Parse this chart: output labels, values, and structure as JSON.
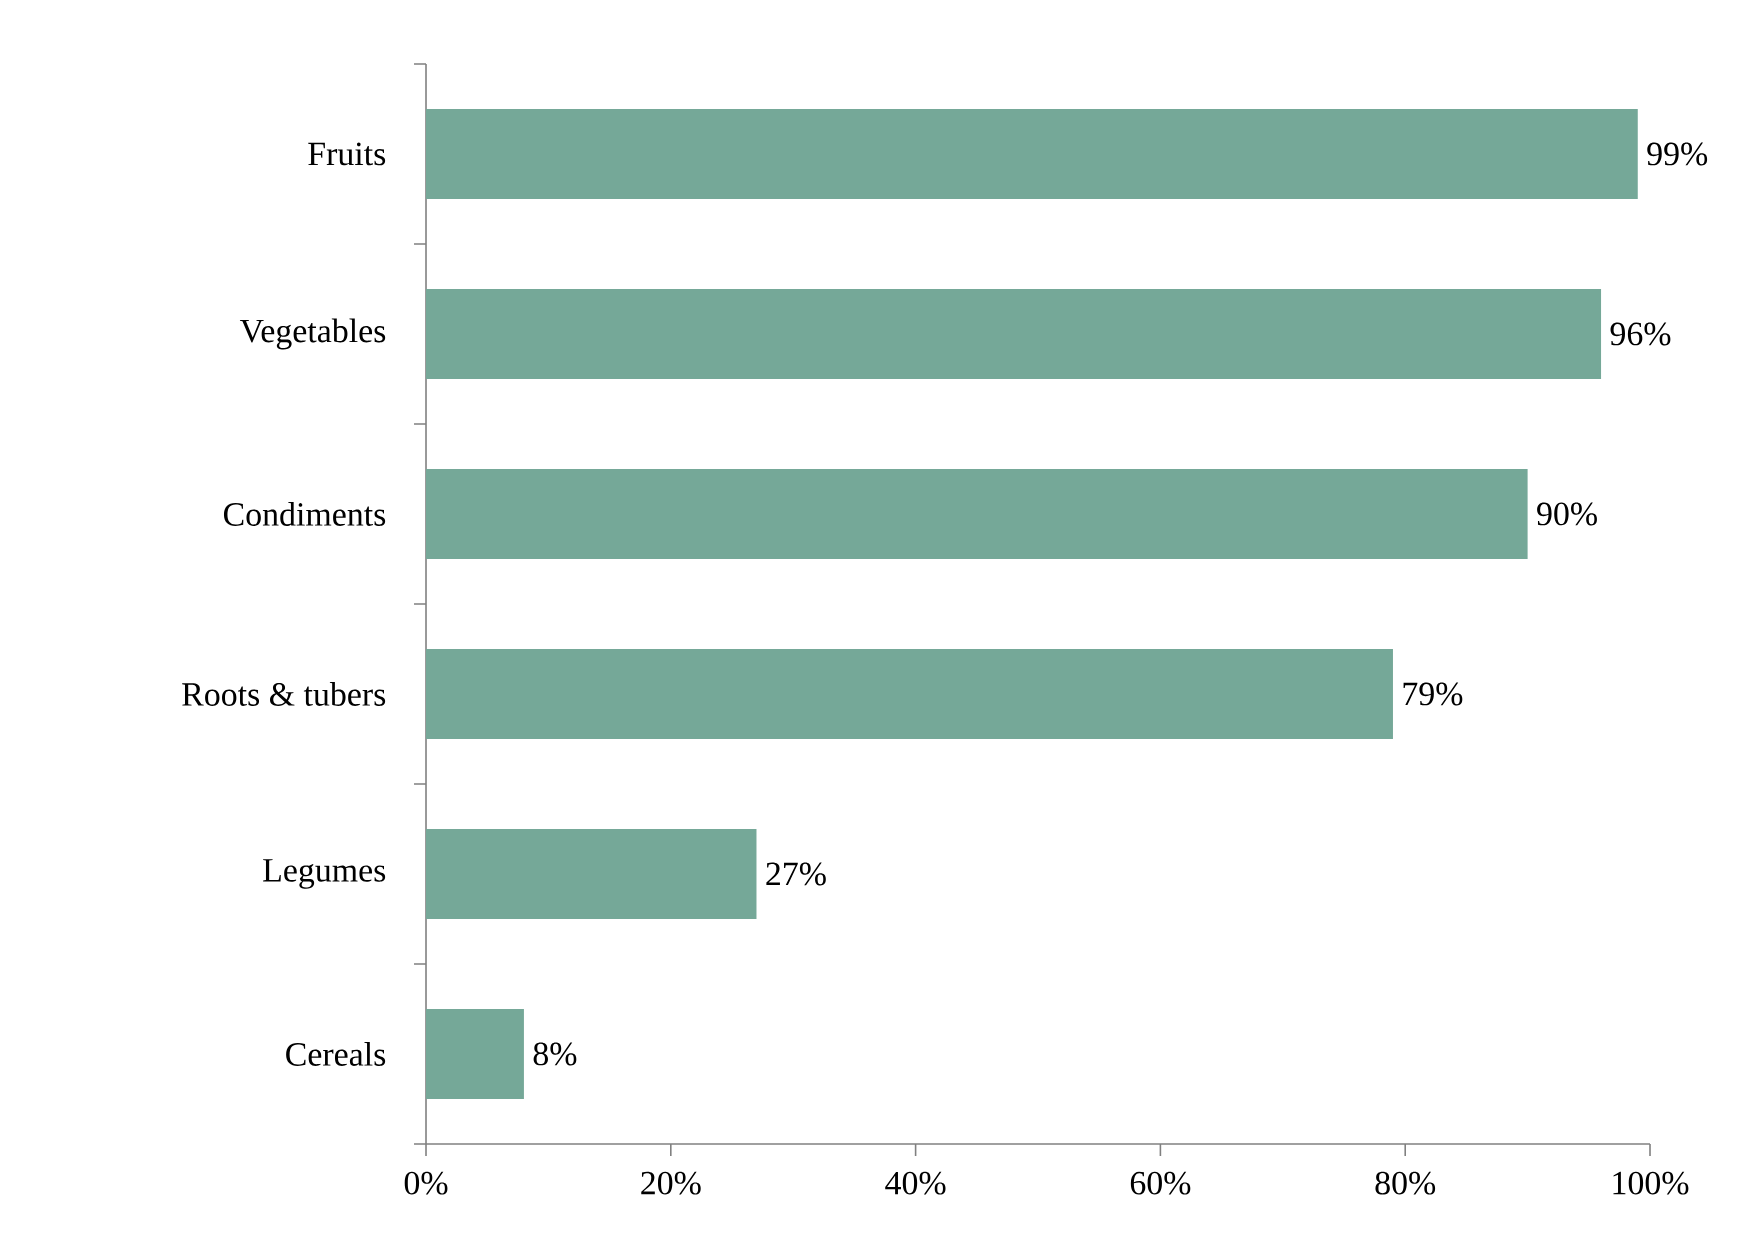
{
  "chart_data": {
    "type": "bar",
    "orientation": "horizontal",
    "categories": [
      "Fruits",
      "Vegetables",
      "Condiments",
      "Roots & tubers",
      "Legumes",
      "Cereals"
    ],
    "values": [
      99,
      96,
      90,
      79,
      27,
      8
    ],
    "value_labels": [
      "99%",
      "96%",
      "90%",
      "79%",
      "27%",
      "8%"
    ],
    "color": "#75a898",
    "xlim": [
      0,
      100
    ],
    "xticks": [
      {
        "value": 0,
        "label": "0%"
      },
      {
        "value": 20,
        "label": "20%"
      },
      {
        "value": 40,
        "label": "40%"
      },
      {
        "value": 60,
        "label": "60%"
      },
      {
        "value": 80,
        "label": "80%"
      },
      {
        "value": 100,
        "label": "100%"
      }
    ],
    "grid": false
  }
}
